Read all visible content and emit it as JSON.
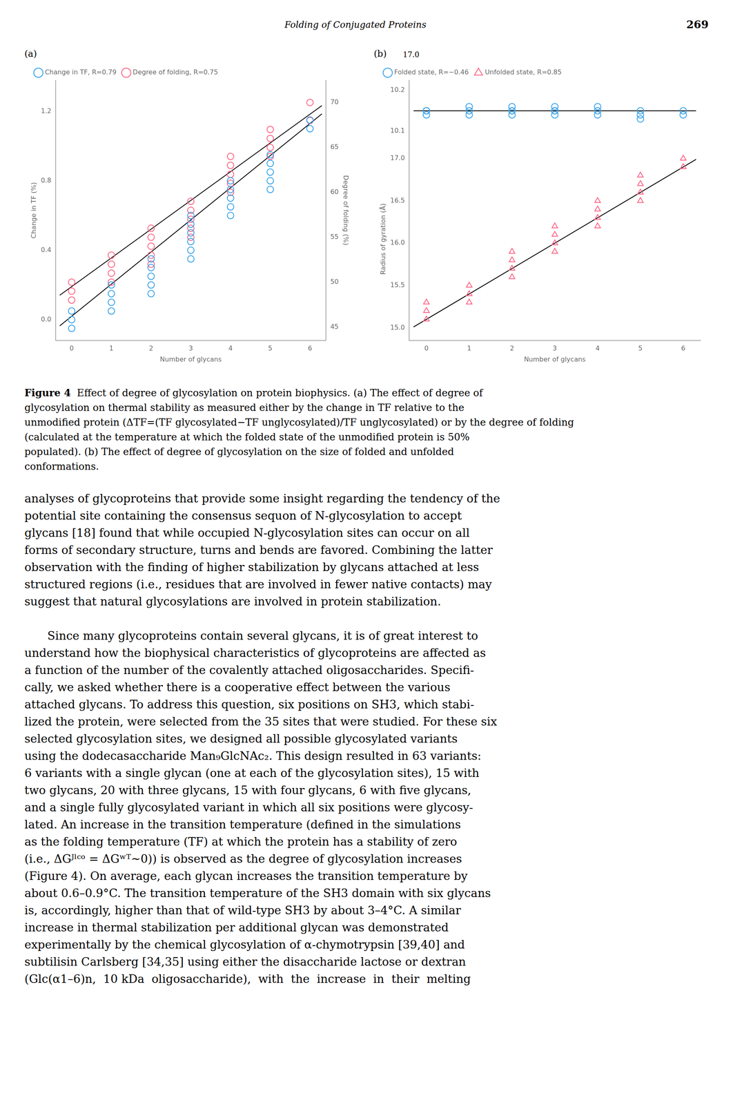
{
  "header": "Folding of Conjugated Proteins",
  "page_number": "269",
  "chart_data": [
    {
      "type": "scatter",
      "title": "(a)",
      "xlabel": "Number of glycans",
      "ylabel": "Change in TF (%)",
      "y2label": "Degree of folding (%)",
      "xlim": [
        -0.4,
        6.4
      ],
      "xticks": [
        0,
        1,
        2,
        3,
        4,
        5,
        6
      ],
      "ylim": [
        -0.12,
        1.38
      ],
      "yticks": [
        {
          "value": 0.0,
          "label": "0.0"
        },
        0.4,
        0.8,
        1.2
      ],
      "y2lim": [
        43.5,
        72.5
      ],
      "y2ticks": [
        45,
        50,
        55,
        60,
        65,
        70
      ],
      "grid": false,
      "legend": "upper left",
      "series": [
        {
          "name": "Change in TF, R=0.79",
          "marker": "circle",
          "color": "#36a2eb",
          "x": [
            0,
            0,
            0,
            1,
            1,
            1,
            1,
            2,
            2,
            2,
            2,
            2,
            3,
            3,
            3,
            3,
            3,
            3,
            4,
            4,
            4,
            4,
            4,
            5,
            5,
            5,
            5,
            5,
            6,
            6
          ],
          "values": [
            0.0,
            0.05,
            -0.05,
            0.1,
            0.15,
            0.2,
            0.05,
            0.25,
            0.3,
            0.35,
            0.2,
            0.15,
            0.45,
            0.5,
            0.55,
            0.4,
            0.35,
            0.6,
            0.7,
            0.75,
            0.65,
            0.8,
            0.6,
            0.85,
            0.9,
            0.95,
            0.75,
            0.8,
            1.1,
            1.15
          ]
        },
        {
          "name": "Degree of folding, R=0.75",
          "marker": "circle",
          "color": "#ff6384",
          "axis": "y2",
          "x": [
            0,
            0,
            0,
            1,
            1,
            1,
            1,
            2,
            2,
            2,
            2,
            2,
            3,
            3,
            3,
            3,
            3,
            4,
            4,
            4,
            4,
            4,
            5,
            5,
            5,
            5,
            6,
            6
          ],
          "values": [
            49,
            50,
            48,
            51,
            52,
            53,
            50,
            54,
            55,
            56,
            53,
            52,
            57,
            58,
            59,
            56,
            55,
            61,
            62,
            63,
            60,
            64,
            65,
            66,
            67,
            64,
            68,
            70
          ]
        },
        {
          "type": "line",
          "line_style": "solid",
          "color": "#000000",
          "x": [
            -0.3,
            6.3
          ],
          "values": [
            -0.0355,
            1.1855
          ]
        },
        {
          "type": "line",
          "line_style": "solid",
          "color": "#000000",
          "axis": "y2",
          "x": [
            -0.3,
            6.3
          ],
          "values": [
            48.54,
            69.66
          ]
        }
      ]
    },
    {
      "type": "scatter",
      "title": "(b)",
      "annotations": [
        {
          "text": "17.0"
        }
      ],
      "xlabel": "Number of glycans",
      "ylabel": "Radius of gyration (Å)",
      "xlim": [
        -0.4,
        6.4
      ],
      "xticks": [
        0,
        1,
        2,
        3,
        4,
        5,
        6
      ],
      "ylim": [
        14.85,
        17.25
      ],
      "yticks": [
        {
          "value": 15.0,
          "label": "15.0"
        },
        15.5,
        {
          "value": 16.0,
          "label": "16.0"
        },
        16.5,
        {
          "value": 17.0,
          "label": "17.0"
        }
      ],
      "y2lim": [
        10.085,
        10.225
      ],
      "y2ticks": [
        10.1,
        10.2
      ],
      "grid": false,
      "legend": "upper left",
      "series": [
        {
          "name": "Folded state, R=−0.46",
          "marker": "circle",
          "color": "#36a2eb",
          "axis": "y2",
          "x": [
            0,
            0,
            0,
            1,
            1,
            1,
            2,
            2,
            2,
            2,
            3,
            3,
            3,
            3,
            4,
            4,
            4,
            5,
            5,
            5,
            6,
            6
          ],
          "values": [
            10.15,
            10.15,
            10.14,
            10.15,
            10.14,
            10.16,
            10.15,
            10.14,
            10.16,
            10.15,
            10.15,
            10.14,
            10.16,
            10.15,
            10.15,
            10.14,
            10.16,
            10.15,
            10.14,
            10.13,
            10.15,
            10.14
          ]
        },
        {
          "name": "Unfolded state, R=0.85",
          "marker": "triangle",
          "color": "#ff6384",
          "x": [
            0,
            0,
            0,
            1,
            1,
            1,
            2,
            2,
            2,
            2,
            3,
            3,
            3,
            3,
            4,
            4,
            4,
            4,
            5,
            5,
            5,
            5,
            6,
            6
          ],
          "values": [
            15.1,
            15.2,
            15.3,
            15.4,
            15.5,
            15.3,
            15.7,
            15.8,
            15.6,
            15.9,
            16.0,
            16.1,
            16.2,
            15.9,
            16.3,
            16.4,
            16.5,
            16.2,
            16.6,
            16.7,
            16.5,
            16.8,
            16.9,
            17.0
          ]
        },
        {
          "type": "line",
          "line_style": "solid",
          "color": "#000000",
          "x": [
            -0.3,
            6.3
          ],
          "values": [
            15.01,
            16.99
          ]
        },
        {
          "type": "line",
          "line_style": "solid",
          "color": "#000000",
          "axis": "y2",
          "x": [
            -0.3,
            6.3
          ],
          "values": [
            10.15,
            10.15
          ]
        }
      ]
    }
  ],
  "caption": {
    "label": "Figure 4",
    "lines": [
      "Effect of degree of glycosylation on protein biophysics. (a) The effect of degree of",
      "glycosylation on thermal stability as measured either by the change in TF relative to the",
      "unmodified protein (ΔTF=(TF glycosylated−TF unglycosylated)/TF unglycosylated) or by the degree of folding",
      "(calculated at the temperature at which the folded state of the unmodified protein is 50%",
      "populated). (b) The effect of degree of glycosylation on the size of folded and unfolded",
      "conformations."
    ]
  },
  "body": [
    [
      "analyses of glycoproteins that provide some insight regarding the tendency of the",
      "potential site containing the consensus sequon of N-glycosylation to accept",
      "glycans [18] found that while occupied N-glycosylation sites can occur on all",
      "forms of secondary structure, turns and bends are favored. Combining the latter",
      "observation with the finding of higher stabilization by glycans attached at less",
      "structured regions (i.e., residues that are involved in fewer native contacts) may",
      "suggest that natural glycosylations are involved in protein stabilization."
    ],
    [
      "Since many glycoproteins contain several glycans, it is of great interest to",
      "understand how the biophysical characteristics of glycoproteins are affected as",
      "a function of the number of the covalently attached oligosaccharides. Specifi-",
      "cally, we asked whether there is a cooperative effect between the various",
      "attached glycans. To address this question, six positions on SH3, which stabi-",
      "lized the protein, were selected from the 35 sites that were studied. For these six",
      "selected glycosylation sites, we designed all possible glycosylated variants",
      "using the dodecasaccharide Man₉GlcNAc₂. This design resulted in 63 variants:",
      "6 variants with a single glycan (one at each of the glycosylation sites), 15 with",
      "two glycans, 20 with three glycans, 15 with four glycans, 6 with five glycans,",
      "and a single fully glycosylated variant in which all six positions were glycosy-",
      "lated. An increase in the transition temperature (defined in the simulations",
      "as the folding temperature (TF) at which the protein has a stability of zero",
      "(i.e., ΔGᴶˡᶜᵒ = ΔGʷᵀ~0)) is observed as the degree of glycosylation increases",
      "(Figure 4). On average, each glycan increases the transition temperature by",
      "about 0.6–0.9°C. The transition temperature of the SH3 domain with six glycans",
      "is, accordingly, higher than that of wild-type SH3 by about 3–4°C. A similar",
      "increase in thermal stabilization per additional glycan was demonstrated",
      "experimentally by the chemical glycosylation of α-chymotrypsin [39,40] and",
      "subtilisin Carlsberg [34,35] using either the disaccharide lactose or dextran",
      "(Glc(α1–6)n,  10 kDa  oligosaccharide),  with  the  increase  in  their  melting"
    ]
  ]
}
